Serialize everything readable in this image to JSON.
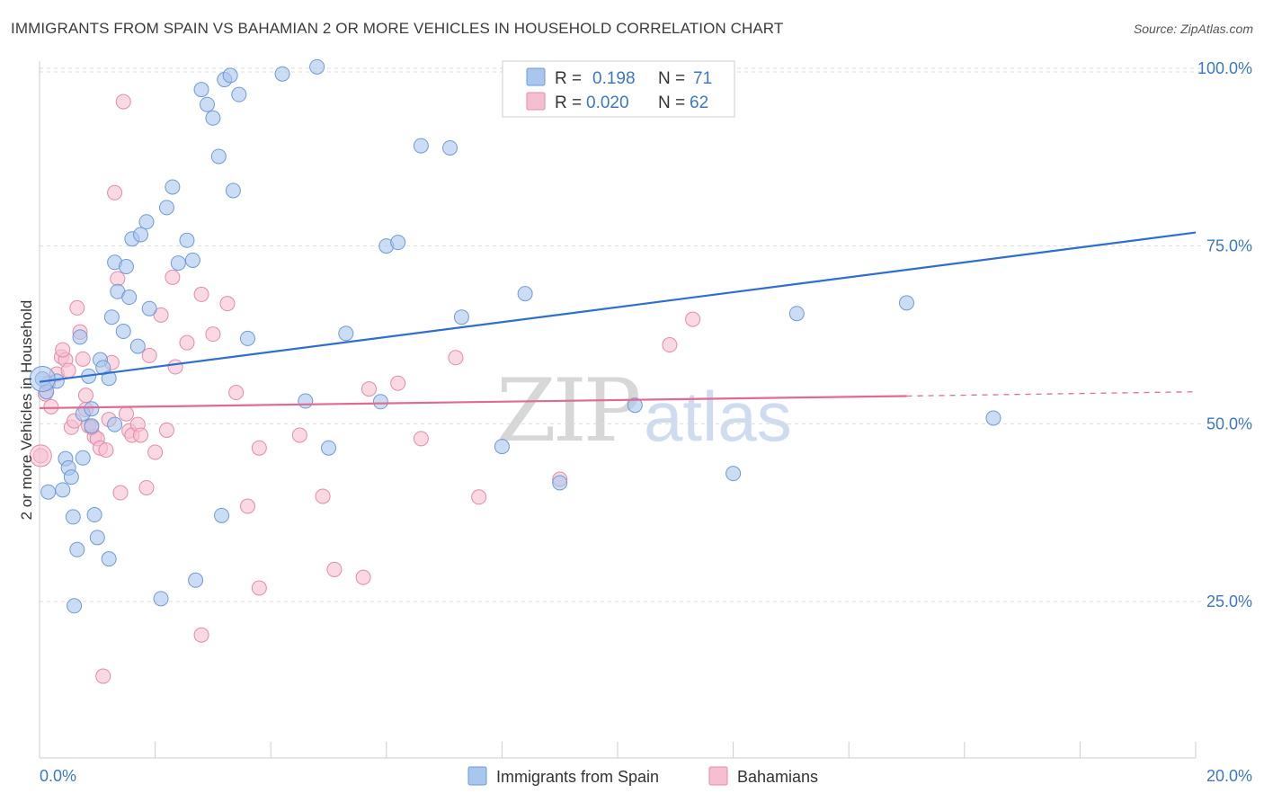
{
  "header": {
    "title": "IMMIGRANTS FROM SPAIN VS BAHAMIAN 2 OR MORE VEHICLES IN HOUSEHOLD CORRELATION CHART",
    "source": "Source: ZipAtlas.com"
  },
  "watermark": {
    "zip": "ZIP",
    "atlas": "atlas"
  },
  "legend_box": {
    "rows": [
      {
        "r_label": "R =",
        "r_value": "0.198",
        "n_label": "N =",
        "n_value": "71"
      },
      {
        "r_label": "R =",
        "r_value": "0.020",
        "n_label": "N =",
        "n_value": "62"
      }
    ]
  },
  "bottom_legend": [
    "Immigrants from Spain",
    "Bahamians"
  ],
  "colors": {
    "blue_fill": "#a9c6ee",
    "blue_stroke": "#6f9ad6",
    "blue_line": "#2f6fcc",
    "pink_fill": "#f6bfd1",
    "pink_stroke": "#e58aaa",
    "pink_line": "#e06a93",
    "tick_text": "#3b78c4",
    "grid": "#dddddd"
  },
  "chart_data": {
    "type": "scatter",
    "title": "IMMIGRANTS FROM SPAIN VS BAHAMIAN 2 OR MORE VEHICLES IN HOUSEHOLD CORRELATION CHART",
    "xlabel": "",
    "ylabel": "2 or more Vehicles in Household",
    "xlim": [
      0,
      20
    ],
    "ylim": [
      3,
      101
    ],
    "x_tick_labels": [
      "0.0%",
      "20.0%"
    ],
    "y_ticks": [
      25,
      50,
      75,
      100
    ],
    "y_tick_labels": [
      "25.0%",
      "50.0%",
      "75.0%",
      "100.0%"
    ],
    "grid": true,
    "legend_position": "top-center",
    "series": [
      {
        "name": "Immigrants from Spain",
        "R": 0.198,
        "N": 71,
        "trend": {
          "x": [
            0,
            20
          ],
          "y": [
            55.9,
            76.9
          ]
        },
        "points": [
          [
            0.05,
            56.3
          ],
          [
            0.12,
            54.5
          ],
          [
            0.15,
            40.4
          ],
          [
            0.3,
            56.0
          ],
          [
            0.45,
            45.1
          ],
          [
            0.5,
            43.8
          ],
          [
            0.4,
            40.7
          ],
          [
            0.65,
            32.3
          ],
          [
            0.55,
            42.5
          ],
          [
            0.58,
            36.9
          ],
          [
            0.7,
            62.2
          ],
          [
            0.75,
            51.4
          ],
          [
            0.85,
            56.7
          ],
          [
            0.9,
            52.1
          ],
          [
            0.95,
            37.2
          ],
          [
            1.05,
            59.0
          ],
          [
            1.1,
            57.9
          ],
          [
            1.2,
            56.4
          ],
          [
            1.25,
            65.0
          ],
          [
            1.3,
            72.7
          ],
          [
            1.35,
            68.6
          ],
          [
            1.45,
            63.0
          ],
          [
            1.5,
            72.1
          ],
          [
            1.55,
            67.8
          ],
          [
            1.6,
            76.0
          ],
          [
            1.7,
            60.9
          ],
          [
            1.75,
            76.6
          ],
          [
            1.85,
            78.4
          ],
          [
            1.9,
            66.2
          ],
          [
            2.2,
            80.4
          ],
          [
            2.3,
            83.3
          ],
          [
            2.4,
            72.6
          ],
          [
            2.55,
            75.8
          ],
          [
            2.65,
            73.0
          ],
          [
            2.8,
            97.0
          ],
          [
            2.9,
            94.9
          ],
          [
            3.0,
            93.0
          ],
          [
            3.1,
            87.6
          ],
          [
            3.2,
            98.4
          ],
          [
            3.3,
            99.0
          ],
          [
            3.35,
            82.8
          ],
          [
            3.45,
            96.3
          ],
          [
            3.6,
            62.0
          ],
          [
            4.2,
            99.2
          ],
          [
            4.6,
            53.2
          ],
          [
            4.8,
            100.2
          ],
          [
            5.0,
            46.6
          ],
          [
            5.3,
            62.7
          ],
          [
            5.9,
            53.1
          ],
          [
            6.0,
            75.0
          ],
          [
            6.2,
            75.5
          ],
          [
            6.6,
            89.1
          ],
          [
            7.1,
            88.8
          ],
          [
            7.3,
            65.0
          ],
          [
            8.0,
            46.8
          ],
          [
            8.4,
            68.3
          ],
          [
            9.0,
            41.7
          ],
          [
            10.3,
            52.6
          ],
          [
            12.0,
            43.0
          ],
          [
            13.1,
            65.5
          ],
          [
            15.0,
            67.0
          ],
          [
            16.5,
            50.8
          ],
          [
            1.0,
            34.0
          ],
          [
            0.6,
            24.4
          ],
          [
            0.75,
            45.2
          ],
          [
            1.2,
            31.0
          ],
          [
            2.1,
            25.4
          ],
          [
            2.7,
            28.0
          ],
          [
            3.15,
            37.1
          ],
          [
            1.3,
            49.9
          ],
          [
            0.9,
            49.7
          ]
        ]
      },
      {
        "name": "Bahamians",
        "R": 0.02,
        "N": 62,
        "trend": {
          "x": [
            0,
            15
          ],
          "y": [
            52.2,
            53.9
          ]
        },
        "trend_dashed": {
          "x": [
            15,
            20
          ],
          "y": [
            53.9,
            54.5
          ]
        },
        "points": [
          [
            0.02,
            45.5
          ],
          [
            0.1,
            54.2
          ],
          [
            0.15,
            55.7
          ],
          [
            0.2,
            52.4
          ],
          [
            0.3,
            57.0
          ],
          [
            0.38,
            59.4
          ],
          [
            0.45,
            59.0
          ],
          [
            0.5,
            57.5
          ],
          [
            0.55,
            49.5
          ],
          [
            0.6,
            50.4
          ],
          [
            0.65,
            66.3
          ],
          [
            0.7,
            62.9
          ],
          [
            0.75,
            59.1
          ],
          [
            0.8,
            52.0
          ],
          [
            0.85,
            49.7
          ],
          [
            0.95,
            48.2
          ],
          [
            1.0,
            47.9
          ],
          [
            1.05,
            46.6
          ],
          [
            1.15,
            46.3
          ],
          [
            1.2,
            50.6
          ],
          [
            1.25,
            58.6
          ],
          [
            1.3,
            82.5
          ],
          [
            1.35,
            70.4
          ],
          [
            1.45,
            95.3
          ],
          [
            1.5,
            51.4
          ],
          [
            1.55,
            49.0
          ],
          [
            1.6,
            48.4
          ],
          [
            1.7,
            49.9
          ],
          [
            1.75,
            48.4
          ],
          [
            1.85,
            41.0
          ],
          [
            1.9,
            59.6
          ],
          [
            2.0,
            46.0
          ],
          [
            2.1,
            65.3
          ],
          [
            2.2,
            49.1
          ],
          [
            2.3,
            70.6
          ],
          [
            2.35,
            58.0
          ],
          [
            2.55,
            61.4
          ],
          [
            2.8,
            68.2
          ],
          [
            3.0,
            62.6
          ],
          [
            3.25,
            66.9
          ],
          [
            3.4,
            54.4
          ],
          [
            3.6,
            38.4
          ],
          [
            3.8,
            46.6
          ],
          [
            4.5,
            48.4
          ],
          [
            4.9,
            39.8
          ],
          [
            5.1,
            29.5
          ],
          [
            5.6,
            28.4
          ],
          [
            5.7,
            54.9
          ],
          [
            6.2,
            55.7
          ],
          [
            6.6,
            47.9
          ],
          [
            7.2,
            59.3
          ],
          [
            7.6,
            39.7
          ],
          [
            9.0,
            42.2
          ],
          [
            10.9,
            61.1
          ],
          [
            11.3,
            64.7
          ],
          [
            0.4,
            60.4
          ],
          [
            0.8,
            54.0
          ],
          [
            0.9,
            49.5
          ],
          [
            1.4,
            40.3
          ],
          [
            1.1,
            14.5
          ],
          [
            2.8,
            20.3
          ],
          [
            3.8,
            26.9
          ]
        ]
      }
    ]
  }
}
